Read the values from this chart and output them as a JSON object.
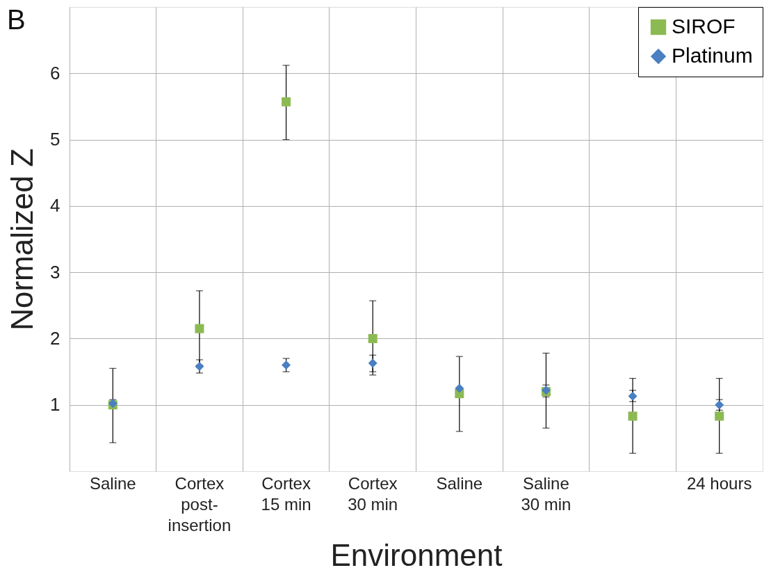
{
  "chart_data": {
    "type": "scatter",
    "categories": [
      "Saline",
      "Cortex\npost-\ninsertion",
      "Cortex\n15 min",
      "Cortex\n30 min",
      "Saline",
      "Saline\n30 min",
      null,
      "24 hours"
    ],
    "xlabel": "Environment",
    "ylabel": "Normalized Z",
    "annotations": [
      "B"
    ],
    "ylim": [
      0,
      7
    ],
    "yticks": [
      1,
      2,
      3,
      4,
      5,
      6
    ],
    "grid": true,
    "legend": "top right",
    "series": [
      {
        "name": "SIROF",
        "color": "#8cba52",
        "marker": "square",
        "values": [
          1.0,
          2.15,
          5.57,
          2.0,
          1.17,
          1.2,
          0.83,
          0.83
        ],
        "errors": [
          [
            0.43,
            1.55
          ],
          [
            1.6,
            2.72
          ],
          [
            5.0,
            6.12
          ],
          [
            1.45,
            2.57
          ],
          [
            0.6,
            1.73
          ],
          [
            0.65,
            1.78
          ],
          [
            0.27,
            1.4
          ],
          [
            0.27,
            1.4
          ]
        ]
      },
      {
        "name": "Platinum",
        "color": "#4a7fc1",
        "marker": "diamond",
        "values": [
          1.02,
          1.58,
          1.6,
          1.63,
          1.25,
          1.22,
          1.13,
          1.0
        ],
        "errors": [
          [
            0.95,
            1.08
          ],
          [
            1.48,
            1.68
          ],
          [
            1.5,
            1.7
          ],
          [
            1.5,
            1.75
          ],
          null,
          [
            1.12,
            1.3
          ],
          [
            1.05,
            1.22
          ],
          [
            0.92,
            1.08
          ]
        ]
      }
    ]
  }
}
